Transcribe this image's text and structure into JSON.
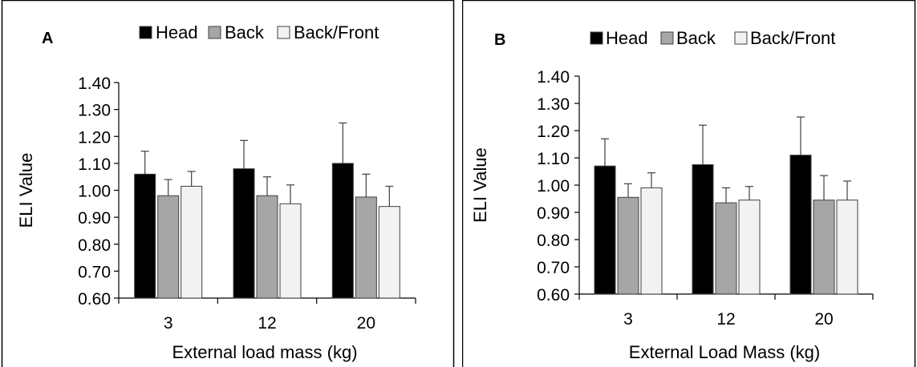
{
  "legend": {
    "items": [
      {
        "label": "Head",
        "color": "#000000"
      },
      {
        "label": "Back",
        "color": "#a6a6a6"
      },
      {
        "label": "Back/Front",
        "color": "#f2f2f2"
      }
    ]
  },
  "chart_data": [
    {
      "type": "bar",
      "panel_label": "A",
      "categories": [
        "3",
        "12",
        "20"
      ],
      "xlabel": "External load mass (kg)",
      "ylabel": "ELI Value",
      "ylim": [
        0.6,
        1.4
      ],
      "yticks": [
        "0.60",
        "0.70",
        "0.80",
        "0.90",
        "1.00",
        "1.10",
        "1.20",
        "1.30",
        "1.40"
      ],
      "grid": false,
      "legend_position": "top",
      "series": [
        {
          "name": "Head",
          "values": [
            1.06,
            1.08,
            1.1
          ],
          "error": [
            0.085,
            0.105,
            0.15
          ],
          "color": "#000000"
        },
        {
          "name": "Back",
          "values": [
            0.98,
            0.98,
            0.975
          ],
          "error": [
            0.06,
            0.07,
            0.085
          ],
          "color": "#a6a6a6"
        },
        {
          "name": "Back/Front",
          "values": [
            1.015,
            0.95,
            0.94
          ],
          "error": [
            0.055,
            0.07,
            0.075
          ],
          "color": "#f2f2f2"
        }
      ]
    },
    {
      "type": "bar",
      "panel_label": "B",
      "categories": [
        "3",
        "12",
        "20"
      ],
      "xlabel": "External Load Mass (kg)",
      "ylabel": "ELI Value",
      "ylim": [
        0.6,
        1.4
      ],
      "yticks": [
        "0.60",
        "0.70",
        "0.80",
        "0.90",
        "1.00",
        "1.10",
        "1.20",
        "1.30",
        "1.40"
      ],
      "grid": false,
      "legend_position": "top",
      "series": [
        {
          "name": "Head",
          "values": [
            1.07,
            1.075,
            1.11
          ],
          "error": [
            0.1,
            0.145,
            0.14
          ],
          "color": "#000000"
        },
        {
          "name": "Back",
          "values": [
            0.955,
            0.935,
            0.945
          ],
          "error": [
            0.05,
            0.055,
            0.09
          ],
          "color": "#a6a6a6"
        },
        {
          "name": "Back/Front",
          "values": [
            0.99,
            0.945,
            0.945
          ],
          "error": [
            0.055,
            0.05,
            0.07
          ],
          "color": "#f2f2f2"
        }
      ]
    }
  ]
}
